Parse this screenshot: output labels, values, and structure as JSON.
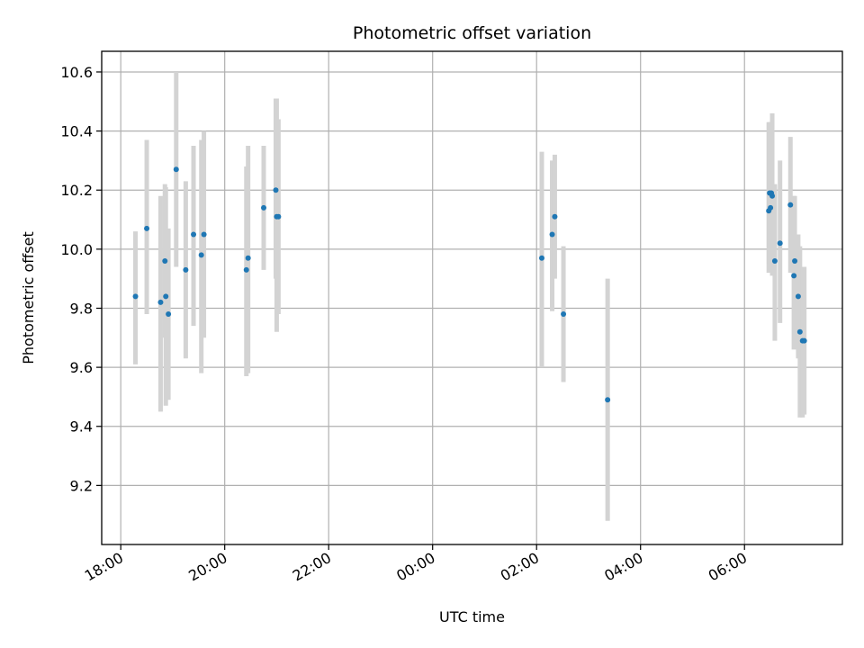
{
  "chart_data": {
    "type": "scatter",
    "title": "Photometric offset variation",
    "xlabel": "UTC time",
    "ylabel": "Photometric offset",
    "grid": true,
    "x_unit": "UTC time of day (18:00 to 07:30 next day)",
    "xlim": [
      "17:38",
      "07:53"
    ],
    "ylim": [
      9.0,
      10.67
    ],
    "x_ticks": [
      "18:00",
      "20:00",
      "22:00",
      "00:00",
      "02:00",
      "04:00",
      "06:00"
    ],
    "y_ticks": [
      "9.2",
      "9.4",
      "9.6",
      "9.8",
      "10.0",
      "10.2",
      "10.4",
      "10.6"
    ],
    "series": [
      {
        "marker_color": "#1f77b4",
        "error_color": "#d3d3d3",
        "points": [
          {
            "x": "18:17",
            "y": 9.84,
            "lo": 9.61,
            "hi": 10.06
          },
          {
            "x": "18:30",
            "y": 10.07,
            "lo": 9.78,
            "hi": 10.37
          },
          {
            "x": "18:46",
            "y": 9.82,
            "lo": 9.45,
            "hi": 10.18
          },
          {
            "x": "18:51",
            "y": 9.96,
            "lo": 9.7,
            "hi": 10.22
          },
          {
            "x": "18:52",
            "y": 9.84,
            "lo": 9.47,
            "hi": 10.21
          },
          {
            "x": "18:55",
            "y": 9.78,
            "lo": 9.49,
            "hi": 10.07
          },
          {
            "x": "19:04",
            "y": 10.27,
            "lo": 9.94,
            "hi": 10.6
          },
          {
            "x": "19:15",
            "y": 9.93,
            "lo": 9.63,
            "hi": 10.23
          },
          {
            "x": "19:24",
            "y": 10.05,
            "lo": 9.74,
            "hi": 10.35
          },
          {
            "x": "19:33",
            "y": 9.98,
            "lo": 9.58,
            "hi": 10.37
          },
          {
            "x": "19:36",
            "y": 10.05,
            "lo": 9.7,
            "hi": 10.4
          },
          {
            "x": "20:25",
            "y": 9.93,
            "lo": 9.57,
            "hi": 10.28
          },
          {
            "x": "20:27",
            "y": 9.97,
            "lo": 9.58,
            "hi": 10.35
          },
          {
            "x": "20:45",
            "y": 10.14,
            "lo": 9.93,
            "hi": 10.35
          },
          {
            "x": "20:59",
            "y": 10.2,
            "lo": 9.9,
            "hi": 10.51
          },
          {
            "x": "21:00",
            "y": 10.11,
            "lo": 9.72,
            "hi": 10.51
          },
          {
            "x": "21:02",
            "y": 10.11,
            "lo": 9.78,
            "hi": 10.44
          },
          {
            "x": "02:06",
            "y": 9.97,
            "lo": 9.6,
            "hi": 10.33
          },
          {
            "x": "02:18",
            "y": 10.05,
            "lo": 9.79,
            "hi": 10.3
          },
          {
            "x": "02:21",
            "y": 10.11,
            "lo": 9.9,
            "hi": 10.32
          },
          {
            "x": "02:31",
            "y": 9.78,
            "lo": 9.55,
            "hi": 10.01
          },
          {
            "x": "03:22",
            "y": 9.49,
            "lo": 9.08,
            "hi": 9.9
          },
          {
            "x": "06:28",
            "y": 10.13,
            "lo": 9.92,
            "hi": 10.43
          },
          {
            "x": "06:29",
            "y": 10.19,
            "lo": 9.95,
            "hi": 10.43
          },
          {
            "x": "06:30",
            "y": 10.14,
            "lo": 9.93,
            "hi": 10.35
          },
          {
            "x": "06:31",
            "y": 10.19,
            "lo": 9.95,
            "hi": 10.43
          },
          {
            "x": "06:32",
            "y": 10.18,
            "lo": 9.91,
            "hi": 10.46
          },
          {
            "x": "06:35",
            "y": 9.96,
            "lo": 9.69,
            "hi": 10.22
          },
          {
            "x": "06:41",
            "y": 10.02,
            "lo": 9.75,
            "hi": 10.3
          },
          {
            "x": "06:53",
            "y": 10.15,
            "lo": 9.92,
            "hi": 10.38
          },
          {
            "x": "06:57",
            "y": 9.91,
            "lo": 9.66,
            "hi": 10.18
          },
          {
            "x": "06:58",
            "y": 9.96,
            "lo": 9.73,
            "hi": 10.18
          },
          {
            "x": "07:02",
            "y": 9.84,
            "lo": 9.63,
            "hi": 10.05
          },
          {
            "x": "07:04",
            "y": 9.72,
            "lo": 9.43,
            "hi": 10.01
          },
          {
            "x": "07:07",
            "y": 9.69,
            "lo": 9.43,
            "hi": 9.94
          },
          {
            "x": "07:09",
            "y": 9.69,
            "lo": 9.44,
            "hi": 9.94
          }
        ]
      }
    ]
  }
}
